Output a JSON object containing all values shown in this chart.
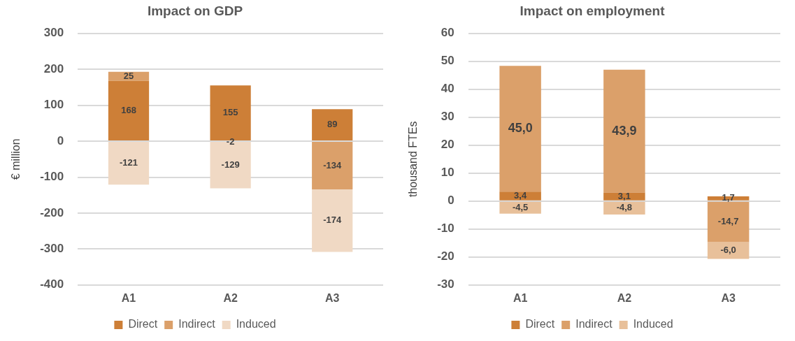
{
  "chart_data": [
    {
      "type": "bar",
      "title": "Impact on GDP",
      "ylabel": "€ million",
      "categories": [
        "A1",
        "A2",
        "A3"
      ],
      "stacked": true,
      "series": [
        {
          "name": "Direct",
          "color": "#cd7f37",
          "values": [
            168,
            155,
            89
          ],
          "value_labels": [
            "168",
            "155",
            "89"
          ]
        },
        {
          "name": "Indirect",
          "color": "#dba06a",
          "values": [
            25,
            -2,
            -134
          ],
          "value_labels": [
            "25",
            "-2",
            "-134"
          ]
        },
        {
          "name": "Induced",
          "color": "#f0d9c4",
          "values": [
            -121,
            -129,
            -174
          ],
          "value_labels": [
            "-121",
            "-129",
            "-174"
          ]
        }
      ],
      "ylim": [
        -400,
        300
      ],
      "yticks": [
        -400,
        -300,
        -200,
        -100,
        0,
        100,
        200,
        300
      ],
      "grid": "y",
      "legend": "bottom"
    },
    {
      "type": "bar",
      "title": "Impact on employment",
      "ylabel": "thousand FTEs",
      "categories": [
        "A1",
        "A2",
        "A3"
      ],
      "stacked": true,
      "series": [
        {
          "name": "Direct",
          "color": "#cd7f37",
          "values": [
            3.4,
            3.1,
            1.7
          ],
          "value_labels": [
            "3,4",
            "3,1",
            "1,7"
          ]
        },
        {
          "name": "Indirect",
          "color": "#dba06a",
          "values": [
            45.0,
            43.9,
            -14.7
          ],
          "value_labels": [
            "45,0",
            "43,9",
            "-14,7"
          ]
        },
        {
          "name": "Induced",
          "color": "#e8c09a",
          "values": [
            -4.5,
            -4.8,
            -6.0
          ],
          "value_labels": [
            "-4,5",
            "-4,8",
            "-6,0"
          ]
        }
      ],
      "ylim": [
        -30,
        60
      ],
      "yticks": [
        -30,
        -20,
        -10,
        0,
        10,
        20,
        30,
        40,
        50,
        60
      ],
      "grid": "y",
      "legend": "bottom"
    }
  ]
}
